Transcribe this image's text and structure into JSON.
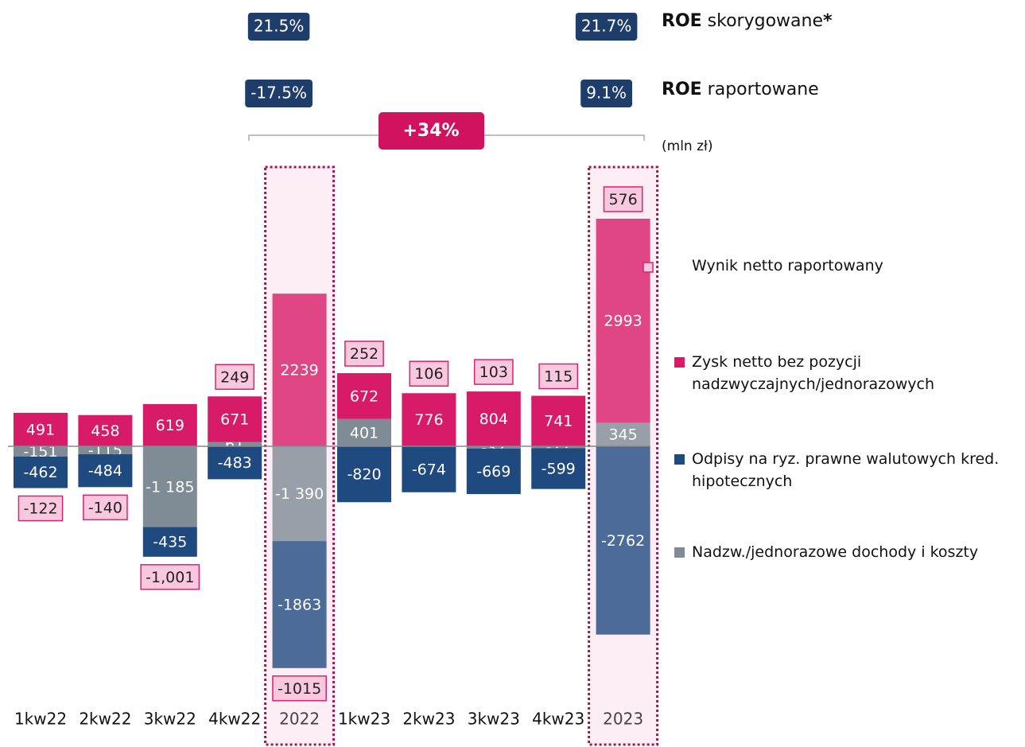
{
  "chart_data": {
    "type": "bar",
    "categories": [
      "1kw22",
      "2kw22",
      "3kw22",
      "4kw22",
      "2022",
      "1kw23",
      "2kw23",
      "3kw23",
      "4kw23",
      "2023"
    ],
    "highlight": [
      4,
      9
    ],
    "net_result": {
      "name": "Wynik netto  raportowany",
      "color": "#d6246e",
      "values": [
        -122,
        -140,
        -1001,
        249,
        -1015,
        252,
        106,
        103,
        115,
        576
      ],
      "value_labels": [
        "-122",
        "-140",
        "-1,001",
        "249",
        "-1015",
        "252",
        "106",
        "103",
        "115",
        "576"
      ]
    },
    "series": [
      {
        "name": "Zysk netto bez pozycji nadzwyczajnych/jednorazowych",
        "color": "#d81b68",
        "values": [
          491,
          458,
          619,
          671,
          2239,
          672,
          776,
          804,
          741,
          2993
        ]
      },
      {
        "name": "Odpisy na ryz. prawne walutowych kred. hipotecznych",
        "color": "#1f4a80",
        "values": [
          -462,
          -484,
          -435,
          -483,
          -1863,
          -820,
          -674,
          -669,
          -599,
          -2762
        ]
      },
      {
        "name": "Nadzw./jednorazowe dochody i koszty",
        "color": "#7f8b95",
        "values": [
          -151,
          -115,
          -1185,
          61,
          -1390,
          401,
          3,
          -32,
          -27,
          345
        ],
        "value_labels": [
          "-151",
          "-115",
          "-1 185",
          "61",
          "-1 390",
          "401",
          "3",
          "-32",
          "-27",
          "345"
        ]
      }
    ],
    "unit_note": "(mln zł)",
    "change_badge": "+34%",
    "roe": [
      {
        "bold": "ROE",
        "text": " skorygowane",
        "mark": "*",
        "values": [
          "21.5%",
          "21.7%"
        ]
      },
      {
        "bold": "ROE",
        "text": " raportowane",
        "values": [
          "-17.5%",
          "9.1%"
        ]
      }
    ]
  }
}
